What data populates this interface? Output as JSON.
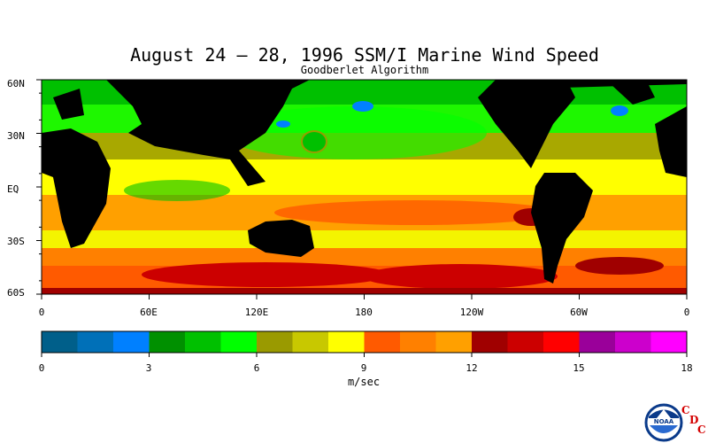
{
  "title": "August 24 – 28, 1996 SSM/I Marine Wind Speed",
  "subtitle": "Goodberlet Algorithm",
  "lat_labels": [
    "60N",
    "30N",
    "EQ",
    "30S",
    "60S"
  ],
  "lon_labels": [
    "0",
    "60E",
    "120E",
    "180",
    "120W",
    "60W",
    "0"
  ],
  "colorbar": {
    "colors": [
      "#005f8a",
      "#0070b8",
      "#0080ff",
      "#009000",
      "#00c000",
      "#00ff00",
      "#9a9a00",
      "#c8c800",
      "#ffff00",
      "#ff5a00",
      "#ff8000",
      "#ffa000",
      "#a00000",
      "#cc0000",
      "#ff0000",
      "#9a009a",
      "#cc00cc",
      "#ff00ff"
    ],
    "ticks": [
      "0",
      "3",
      "6",
      "9",
      "12",
      "15",
      "18"
    ],
    "units": "m/sec"
  },
  "logo": {
    "name": "NOAA",
    "letters": [
      "C",
      "D",
      "C"
    ]
  },
  "colors": {
    "land": "#000000",
    "background": "#ffffff"
  }
}
